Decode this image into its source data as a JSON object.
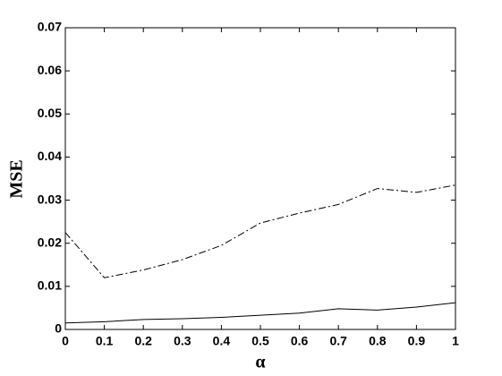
{
  "chart_data": {
    "type": "line",
    "xlabel": "α",
    "ylabel": "MSE",
    "x": [
      0,
      0.1,
      0.2,
      0.3,
      0.4,
      0.5,
      0.6,
      0.7,
      0.8,
      0.9,
      1
    ],
    "series": [
      {
        "color": "#000000",
        "style": "dashdot",
        "values": [
          0.0225,
          0.012,
          0.0138,
          0.0162,
          0.0195,
          0.0247,
          0.027,
          0.029,
          0.0327,
          0.0318,
          0.0335
        ]
      },
      {
        "color": "#000000",
        "style": "solid",
        "values": [
          0.0015,
          0.0018,
          0.0023,
          0.0025,
          0.0028,
          0.0033,
          0.0038,
          0.0048,
          0.0045,
          0.0052,
          0.0062
        ]
      }
    ],
    "xlim": [
      0,
      1
    ],
    "ylim": [
      0,
      0.07
    ],
    "xticks": [
      0,
      0.1,
      0.2,
      0.3,
      0.4,
      0.5,
      0.6,
      0.7,
      0.8,
      0.9,
      1
    ],
    "yticks": [
      0,
      0.01,
      0.02,
      0.03,
      0.04,
      0.05,
      0.06,
      0.07
    ],
    "grid": false
  }
}
